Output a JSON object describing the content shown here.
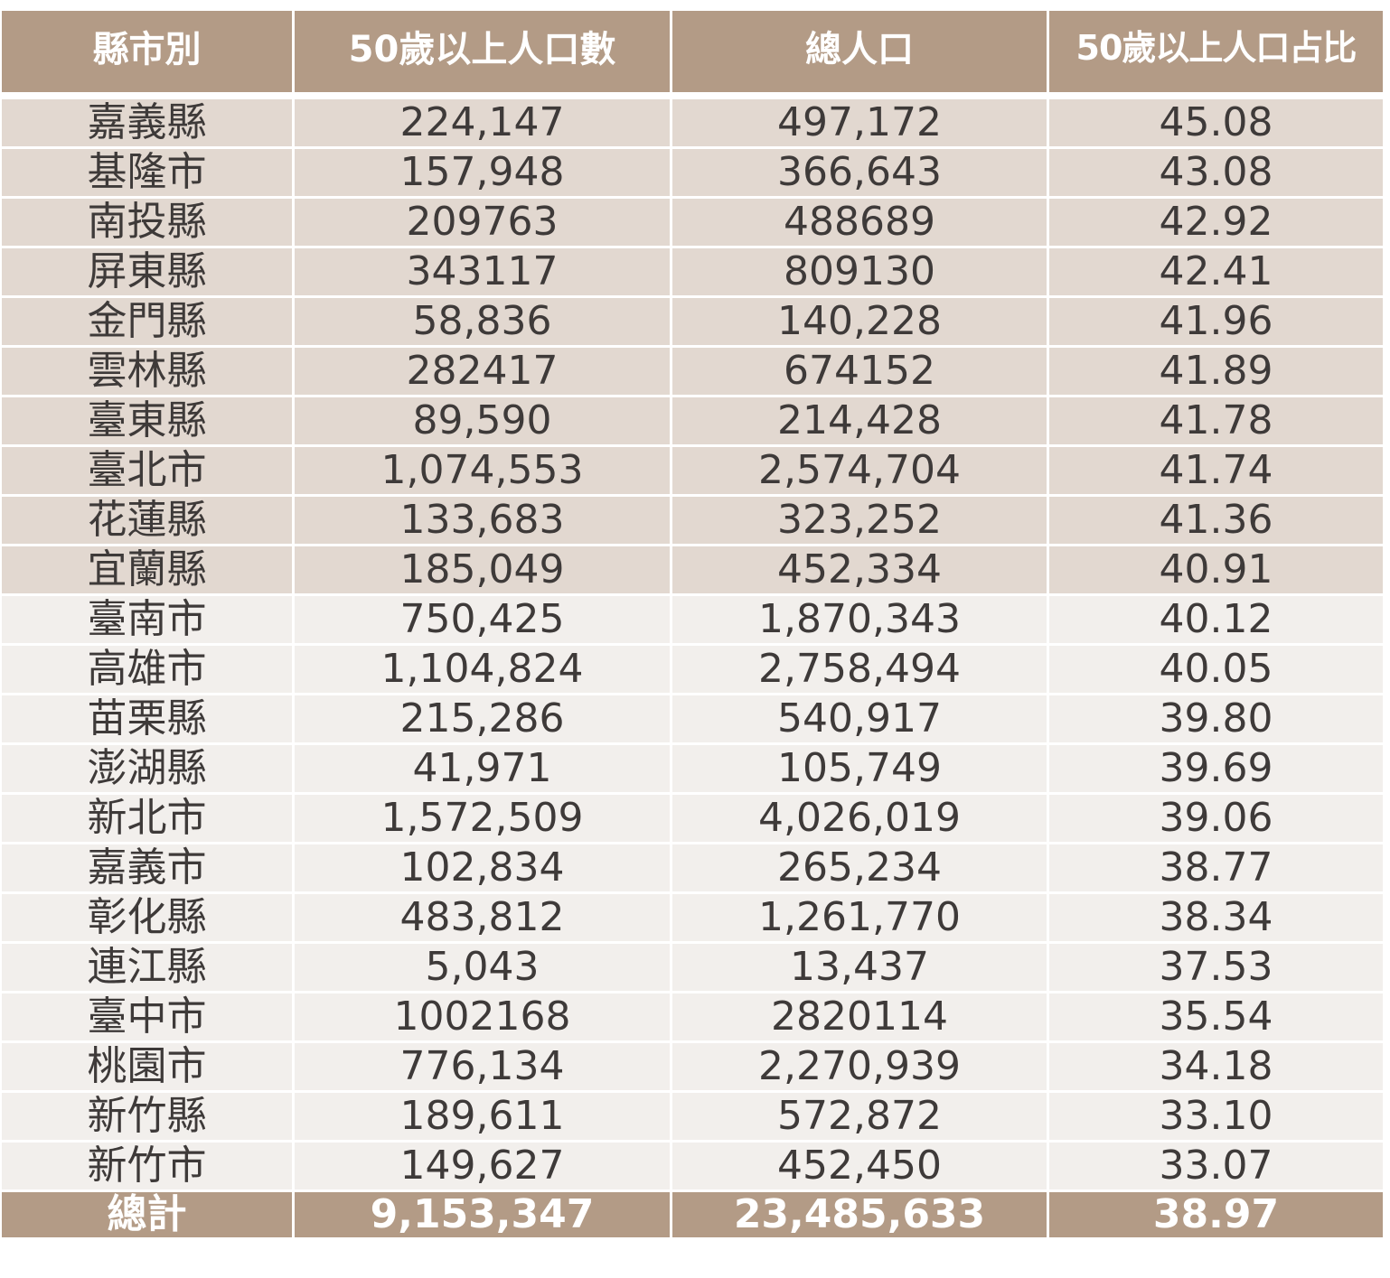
{
  "headers": [
    "縣市別",
    "50歲以上人口數",
    "總人口",
    "50歲以上人口占比"
  ],
  "rows": [
    [
      "嘉義縣",
      "224,147",
      "497,172",
      "45.08"
    ],
    [
      "基隆市",
      "157,948",
      "366,643",
      "43.08"
    ],
    [
      "南投縣",
      "209763",
      "488689",
      "42.92"
    ],
    [
      "屏東縣",
      "343117",
      "809130",
      "42.41"
    ],
    [
      "金門縣",
      "58,836",
      "140,228",
      "41.96"
    ],
    [
      "雲林縣",
      "282417",
      "674152",
      "41.89"
    ],
    [
      "臺東縣",
      "89,590",
      "214,428",
      "41.78"
    ],
    [
      "臺北市",
      "1,074,553",
      "2,574,704",
      "41.74"
    ],
    [
      "花蓮縣",
      "133,683",
      "323,252",
      "41.36"
    ],
    [
      "宜蘭縣",
      "185,049",
      "452,334",
      "40.91"
    ],
    [
      "臺南市",
      "750,425",
      "1,870,343",
      "40.12"
    ],
    [
      "高雄市",
      "1,104,824",
      "2,758,494",
      "40.05"
    ],
    [
      "苗栗縣",
      "215,286",
      "540,917",
      "39.80"
    ],
    [
      "澎湖縣",
      "41,971",
      "105,749",
      "39.69"
    ],
    [
      "新北市",
      "1,572,509",
      "4,026,019",
      "39.06"
    ],
    [
      "嘉義市",
      "102,834",
      "265,234",
      "38.77"
    ],
    [
      "彰化縣",
      "483,812",
      "1,261,770",
      "38.34"
    ],
    [
      "連江縣",
      "5,043",
      "13,437",
      "37.53"
    ],
    [
      "臺中市",
      "1002168",
      "2820114",
      "35.54"
    ],
    [
      "桃園市",
      "776,134",
      "2,270,939",
      "34.18"
    ],
    [
      "新竹縣",
      "189,611",
      "572,872",
      "33.10"
    ],
    [
      "新竹市",
      "149,627",
      "452,450",
      "33.07"
    ]
  ],
  "highlighted_row_count": 10,
  "total": [
    "總計",
    "9,153,347",
    "23,485,633",
    "38.97"
  ],
  "colors": {
    "header_bg": "#b39b86",
    "highlight_row_bg": "#e2d8d0",
    "normal_row_bg": "#f2efec",
    "text": "#3e3a39"
  }
}
